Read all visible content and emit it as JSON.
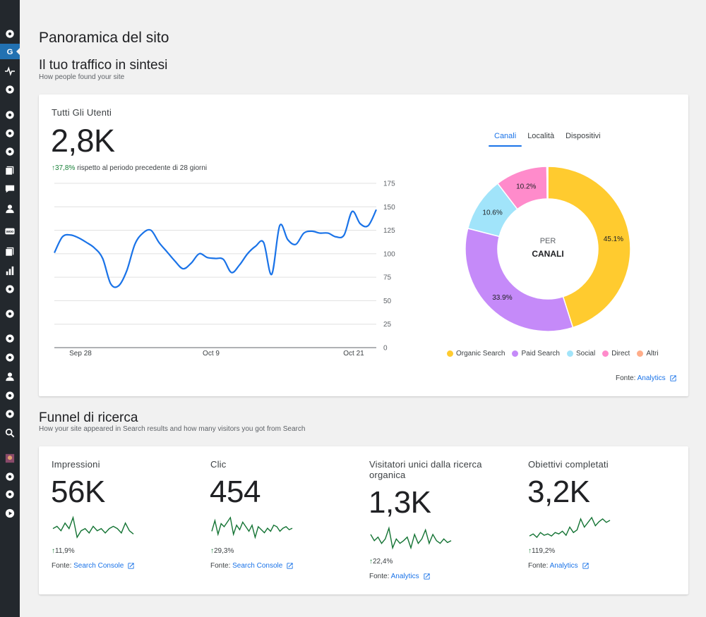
{
  "page": {
    "title": "Panoramica del sito"
  },
  "traffic": {
    "title": "Il tuo traffico in sintesi",
    "subtitle": "How people found your site",
    "metric_label": "Tutti Gli Utenti",
    "metric_value": "2,8K",
    "delta_value": "37,8%",
    "delta_text": "rispetto al periodo precedente di 28 giorni",
    "tabs": [
      "Canali",
      "Località",
      "Dispositivi"
    ],
    "source_label": "Fonte:",
    "source_link": "Analytics"
  },
  "chart_data": [
    {
      "type": "line",
      "x_labels": [
        "Sep 28",
        "Oct 9",
        "Oct 21"
      ],
      "y_ticks": [
        0,
        25,
        50,
        75,
        100,
        125,
        150,
        175
      ],
      "ylim": [
        0,
        175
      ],
      "grid": true,
      "values": [
        101,
        118,
        120,
        117,
        112,
        106,
        95,
        68,
        66,
        82,
        110,
        122,
        125,
        112,
        102,
        92,
        84,
        90,
        100,
        96,
        95,
        94,
        80,
        88,
        100,
        108,
        112,
        78,
        130,
        115,
        110,
        122,
        124,
        122,
        122,
        118,
        120,
        145,
        132,
        130,
        147
      ]
    },
    {
      "type": "pie",
      "center_label_top": "PER",
      "center_label_bottom": "CANALI",
      "categories": [
        "Organic Search",
        "Paid Search",
        "Social",
        "Direct",
        "Altri"
      ],
      "values": [
        45.1,
        33.9,
        10.6,
        10.2,
        0.2
      ],
      "labels": [
        "45.1%",
        "33.9%",
        "10.6%",
        "10.2%",
        ""
      ],
      "colors": [
        "#ffcb2f",
        "#c58af9",
        "#a1e4fa",
        "#ff8bcb",
        "#ffad8a"
      ],
      "legend": "bottom"
    }
  ],
  "funnel": {
    "title": "Funnel di ricerca",
    "subtitle": "How your site appeared in Search results and how many visitors you got from Search",
    "metrics": [
      {
        "label": "Impressioni",
        "value": "56K",
        "delta": "11,9%",
        "source_label": "Fonte:",
        "source_link": "Search Console"
      },
      {
        "label": "Clic",
        "value": "454",
        "delta": "29,3%",
        "source_label": "Fonte:",
        "source_link": "Search Console"
      },
      {
        "label": "Visitatori unici dalla ricerca organica",
        "value": "1,3K",
        "delta": "22,4%",
        "source_label": "Fonte:",
        "source_link": "Analytics"
      },
      {
        "label": "Obiettivi completati",
        "value": "3,2K",
        "delta": "119,2%",
        "source_label": "Fonte:",
        "source_link": "Analytics"
      }
    ],
    "sparklines": [
      [
        50,
        52,
        48,
        55,
        50,
        60,
        42,
        48,
        50,
        46,
        52,
        48,
        50,
        46,
        50,
        52,
        50,
        46,
        55,
        48,
        45
      ],
      [
        40,
        75,
        30,
        65,
        55,
        70,
        85,
        30,
        60,
        45,
        70,
        55,
        40,
        60,
        20,
        55,
        45,
        35,
        50,
        40,
        60,
        55,
        40,
        50,
        55,
        45,
        50
      ],
      [
        55,
        48,
        52,
        45,
        50,
        62,
        40,
        50,
        45,
        48,
        52,
        40,
        55,
        45,
        50,
        60,
        45,
        55,
        48,
        45,
        50,
        46,
        48
      ],
      [
        35,
        38,
        33,
        40,
        36,
        38,
        35,
        40,
        38,
        42,
        36,
        48,
        40,
        44,
        60,
        48,
        55,
        62,
        50,
        56,
        60,
        55,
        58
      ]
    ],
    "sparkline_color": "#137333",
    "delta_color": "#188038"
  },
  "sidebar": {
    "icons": [
      "dashboard-icon",
      "google-icon",
      "pulse-icon",
      "gauge-icon",
      "pin-icon",
      "media-icon",
      "g-circle-icon",
      "pages-icon",
      "comment-icon",
      "user-icon",
      "woo-icon",
      "archive-icon",
      "stats-icon",
      "megaphone-icon",
      "g-logo-icon",
      "brush-icon",
      "plug-icon",
      "users-icon",
      "wrench-icon",
      "plus-square-icon",
      "search-icon",
      "avatar-icon",
      "octopus-icon",
      "refresh-icon",
      "play-icon"
    ]
  }
}
